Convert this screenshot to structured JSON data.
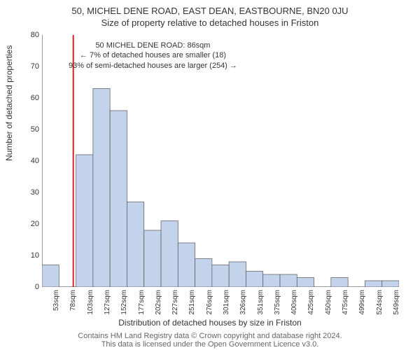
{
  "title_main": "50, MICHEL DENE ROAD, EAST DEAN, EASTBOURNE, BN20 0JU",
  "title_sub": "Size of property relative to detached houses in Friston",
  "y_axis_label": "Number of detached properties",
  "x_axis_label": "Distribution of detached houses by size in Friston",
  "footer_note": "Contains HM Land Registry data © Crown copyright and database right 2024.\nThis data is licensed under the Open Government Licence v3.0.",
  "annotation": {
    "line1": "50 MICHEL DENE ROAD: 86sqm",
    "line2": "← 7% of detached houses are smaller (18)",
    "line3": "93% of semi-detached houses are larger (254) →"
  },
  "chart": {
    "type": "bar",
    "background_color": "#ffffff",
    "plot_border_color": "#333333",
    "ylim": [
      0,
      80
    ],
    "yticks": [
      0,
      10,
      20,
      30,
      40,
      50,
      60,
      70,
      80
    ],
    "bar_color": "#c3d3eb",
    "bar_border_color": "#555555",
    "bar_width": 1.0,
    "ref_line_color": "#cc2222",
    "ref_line_x_sqm": 86,
    "bin_start": 40,
    "bin_width": 25,
    "categories": [
      "53sqm",
      "78sqm",
      "103sqm",
      "127sqm",
      "152sqm",
      "177sqm",
      "202sqm",
      "227sqm",
      "251sqm",
      "276sqm",
      "301sqm",
      "326sqm",
      "351sqm",
      "375sqm",
      "400sqm",
      "425sqm",
      "450sqm",
      "475sqm",
      "499sqm",
      "524sqm",
      "549sqm"
    ],
    "values": [
      7,
      0,
      42,
      63,
      56,
      27,
      18,
      21,
      14,
      9,
      7,
      8,
      5,
      4,
      4,
      3,
      0,
      3,
      0,
      2,
      2
    ],
    "title_fontsize": 13,
    "label_fontsize": 12,
    "tick_fontsize": 11,
    "annotation_fontsize": 11
  }
}
